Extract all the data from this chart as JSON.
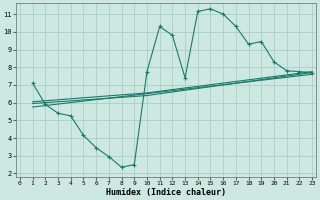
{
  "bg_color": "#cce8e0",
  "grid_color": "#aacfc8",
  "line_color": "#1a7a6a",
  "line1_x": [
    1,
    2,
    3,
    4,
    5,
    6,
    7,
    8,
    9,
    10,
    11,
    12,
    13,
    14,
    15,
    16,
    17,
    18,
    19,
    20,
    21,
    22,
    23
  ],
  "line1_y": [
    7.1,
    5.9,
    5.4,
    5.25,
    4.15,
    3.45,
    2.95,
    2.35,
    2.5,
    7.75,
    10.3,
    9.8,
    7.4,
    11.15,
    11.3,
    11.0,
    10.3,
    9.3,
    9.45,
    8.3,
    7.8,
    7.75,
    7.7
  ],
  "line2_x": [
    1,
    10,
    23
  ],
  "line2_y": [
    5.95,
    6.4,
    7.7
  ],
  "line3_x": [
    1,
    10,
    23
  ],
  "line3_y": [
    6.05,
    6.55,
    7.75
  ],
  "line4_x": [
    1,
    23
  ],
  "line4_y": [
    5.75,
    7.6
  ],
  "xlabel": "Humidex (Indice chaleur)",
  "xlim": [
    -0.3,
    23.3
  ],
  "ylim": [
    1.8,
    11.6
  ],
  "yticks": [
    2,
    3,
    4,
    5,
    6,
    7,
    8,
    9,
    10,
    11
  ],
  "xticks": [
    0,
    1,
    2,
    3,
    4,
    5,
    6,
    7,
    8,
    9,
    10,
    11,
    12,
    13,
    14,
    15,
    16,
    17,
    18,
    19,
    20,
    21,
    22,
    23
  ]
}
